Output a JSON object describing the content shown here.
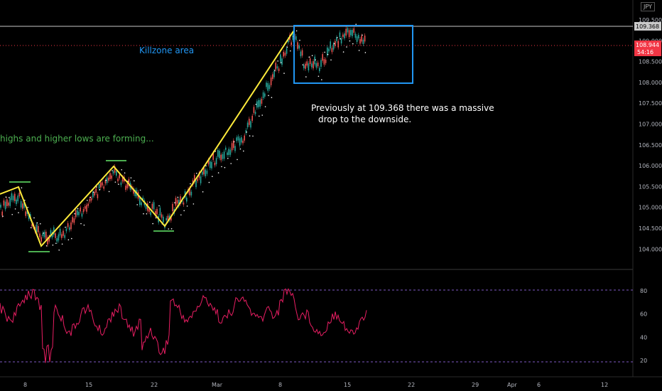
{
  "symbol": "JPY",
  "colors": {
    "trend": "#ffeb3b",
    "swing": "#4caf50",
    "killzone": "#2196f3",
    "rsi": "#e91e63",
    "current": "#f23645",
    "level": "#c9c9c9"
  },
  "price_axis": {
    "ticks": [
      "109.500",
      "109.000",
      "108.500",
      "108.000",
      "107.500",
      "107.000",
      "106.500",
      "106.000",
      "105.500",
      "105.000",
      "104.500",
      "104.000"
    ],
    "level_label": "109.368",
    "current_price": "108.944",
    "countdown": "54:16"
  },
  "rsi_axis": {
    "ticks": [
      "80",
      "60",
      "40",
      "20"
    ]
  },
  "time_axis": {
    "ticks": [
      "8",
      "15",
      "22",
      "Mar",
      "8",
      "15",
      "22",
      "29",
      "Apr",
      "6",
      "12"
    ]
  },
  "annotations": {
    "killzone": "Killzone area",
    "trend": "highs and higher lows are forming...",
    "note_line1": "Previously at 109.368 there was a massive",
    "note_line2": "drop to the downside."
  }
}
